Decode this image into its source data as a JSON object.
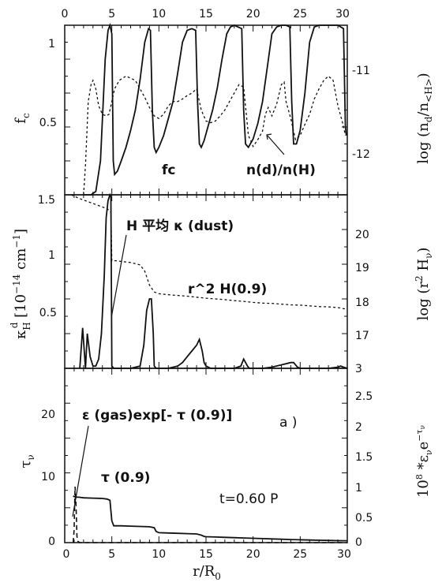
{
  "chart_data": [
    {
      "panel": "top",
      "type": "line",
      "xlim": [
        0,
        30
      ],
      "top_xticks": [
        "0",
        "5",
        "10",
        "15",
        "20",
        "25",
        "30"
      ],
      "ylim": [
        0,
        1.0
      ],
      "yticks": [
        "1",
        "0.5"
      ],
      "ylabel": "f_c",
      "right_ylabel": "log (n_d/n_<H>)",
      "right_yticks": [
        "-11",
        "-12"
      ],
      "right_ylim": [
        -12.55,
        -10.55
      ],
      "annotations": {
        "fc": "fc",
        "ndnh": "n(d)/n(H)"
      },
      "series": [
        {
          "name": "fc",
          "style": "solid",
          "x": [
            2.0,
            2.3,
            2.8,
            3.3,
            3.8,
            4.3,
            4.6,
            4.8,
            5.0,
            5.15,
            5.3,
            5.6,
            6.0,
            6.5,
            7.0,
            7.5,
            8.0,
            8.5,
            8.9,
            9.1,
            9.3,
            9.5,
            9.7,
            10.0,
            10.5,
            11.0,
            11.5,
            12.0,
            12.5,
            13.0,
            13.5,
            13.9,
            14.1,
            14.3,
            14.5,
            14.8,
            15.2,
            15.7,
            16.2,
            16.7,
            17.2,
            17.6,
            18.0,
            18.4,
            18.8,
            19.0,
            19.2,
            19.5,
            20.0,
            20.5,
            21.0,
            21.5,
            22.0,
            22.5,
            23.0,
            23.5,
            23.9,
            24.1,
            24.3,
            24.6,
            25.0,
            25.5,
            26.0,
            26.5,
            27.0,
            28.0,
            29.0,
            29.6,
            29.8,
            29.9
          ],
          "y": [
            0.0,
            0.0,
            0.0,
            0.02,
            0.2,
            0.8,
            0.97,
            1.0,
            0.95,
            0.2,
            0.12,
            0.14,
            0.2,
            0.28,
            0.38,
            0.5,
            0.68,
            0.9,
            0.98,
            0.97,
            0.5,
            0.28,
            0.25,
            0.28,
            0.35,
            0.45,
            0.55,
            0.72,
            0.9,
            0.97,
            0.98,
            0.97,
            0.55,
            0.3,
            0.28,
            0.32,
            0.4,
            0.5,
            0.63,
            0.8,
            0.95,
            0.99,
            1.0,
            0.99,
            0.98,
            0.5,
            0.3,
            0.28,
            0.33,
            0.42,
            0.55,
            0.75,
            0.95,
            0.99,
            1.0,
            1.0,
            0.99,
            0.55,
            0.3,
            0.3,
            0.38,
            0.6,
            0.9,
            0.99,
            1.0,
            1.0,
            1.0,
            0.98,
            0.4,
            0.35
          ]
        },
        {
          "name": "n(d)/n(H)",
          "style": "dashed",
          "x": [
            2.0,
            2.2,
            2.5,
            2.8,
            3.0,
            3.3,
            3.6,
            4.0,
            4.4,
            4.7,
            5.0,
            5.3,
            5.8,
            6.5,
            7.5,
            8.5,
            9.0,
            9.5,
            10.0,
            10.5,
            11.0,
            11.5,
            12.0,
            12.5,
            13.0,
            13.5,
            14.0,
            14.5,
            15.0,
            15.5,
            16.0,
            16.5,
            17.0,
            17.5,
            18.0,
            18.5,
            19.0,
            19.5,
            20.0,
            20.5,
            21.0,
            21.3,
            21.6,
            22.0,
            22.5,
            23.0,
            23.3,
            23.5,
            24.0,
            24.5,
            25.0,
            25.5,
            26.0,
            26.5,
            27.0,
            27.5,
            28.0,
            28.5,
            29.0,
            29.5,
            29.8
          ],
          "y": [
            -12.55,
            -12.2,
            -11.45,
            -11.25,
            -11.2,
            -11.3,
            -11.5,
            -11.6,
            -11.62,
            -11.6,
            -11.45,
            -11.3,
            -11.2,
            -11.15,
            -11.2,
            -11.4,
            -11.52,
            -11.62,
            -11.65,
            -11.6,
            -11.5,
            -11.45,
            -11.45,
            -11.42,
            -11.38,
            -11.35,
            -11.3,
            -11.55,
            -11.68,
            -11.7,
            -11.68,
            -11.62,
            -11.55,
            -11.45,
            -11.35,
            -11.25,
            -11.28,
            -11.85,
            -11.98,
            -11.9,
            -11.8,
            -11.6,
            -11.52,
            -11.62,
            -11.48,
            -11.25,
            -11.22,
            -11.45,
            -11.65,
            -11.9,
            -11.85,
            -11.72,
            -11.6,
            -11.42,
            -11.3,
            -11.2,
            -11.15,
            -11.2,
            -11.5,
            -11.7,
            -11.85
          ]
        }
      ]
    },
    {
      "panel": "middle",
      "type": "line",
      "xlim": [
        0,
        30
      ],
      "ylim": [
        0,
        1.5
      ],
      "yticks": [
        "1.5",
        "1",
        "0.5"
      ],
      "ylabel": "κ_H^d [10^-14 cm^-1]",
      "right_ylabel": "log (r^2 H_ν)",
      "right_yticks": [
        "20",
        "19",
        "18",
        "17"
      ],
      "right_ylim": [
        15.8,
        20.8
      ],
      "annotations": {
        "kappa": "H 平均 κ (dust)",
        "r2h": "r^2 H(0.9)"
      },
      "series": [
        {
          "name": "κ (dust)",
          "style": "solid",
          "x": [
            1.6,
            1.9,
            2.2,
            2.4,
            2.7,
            3.0,
            3.3,
            3.6,
            3.9,
            4.2,
            4.4,
            4.6,
            4.8,
            4.9,
            5.0,
            5.2,
            5.5,
            6.0,
            7.0,
            8.0,
            8.4,
            8.7,
            9.0,
            9.2,
            9.4,
            9.5,
            9.7,
            10.0,
            11.0,
            12.0,
            12.5,
            13.0,
            13.5,
            14.0,
            14.3,
            14.6,
            14.8,
            15.0,
            15.5,
            16.0,
            17.0,
            18.0,
            18.7,
            19.0,
            19.2,
            19.4,
            19.6,
            20.0,
            21.0,
            22.0,
            23.0,
            24.0,
            24.3,
            24.5,
            24.7,
            25.0,
            26.0,
            27.0,
            28.0,
            29.0,
            29.3,
            29.6,
            30.0
          ],
          "y": [
            0.0,
            0.35,
            0.0,
            0.3,
            0.1,
            0.02,
            0.02,
            0.08,
            0.3,
            0.8,
            1.3,
            1.45,
            1.5,
            1.48,
            0.02,
            0.0,
            0.0,
            0.0,
            0.0,
            0.02,
            0.2,
            0.5,
            0.6,
            0.6,
            0.3,
            0.02,
            0.0,
            0.0,
            0.0,
            0.02,
            0.05,
            0.1,
            0.15,
            0.2,
            0.25,
            0.15,
            0.05,
            0.02,
            0.0,
            0.0,
            0.0,
            0.0,
            0.02,
            0.08,
            0.05,
            0.02,
            0.0,
            0.0,
            0.0,
            0.01,
            0.03,
            0.05,
            0.05,
            0.03,
            0.01,
            0.0,
            0.0,
            0.0,
            0.0,
            0.01,
            0.02,
            0.01,
            0.0
          ]
        },
        {
          "name": "r^2 H(0.9)",
          "style": "dashed",
          "x": [
            0.7,
            1.5,
            2.5,
            3.5,
            4.5,
            4.9,
            5.0,
            5.5,
            6.0,
            7.0,
            8.0,
            8.5,
            9.0,
            9.5,
            10.0,
            11.0,
            12.0,
            13.0,
            14.0,
            15.0,
            16.0,
            17.0,
            18.0,
            19.0,
            20.0,
            21.0,
            22.0,
            23.0,
            24.0,
            25.0,
            26.0,
            27.0,
            28.0,
            29.0,
            30.0
          ],
          "y": [
            20.8,
            20.7,
            20.6,
            20.5,
            20.4,
            20.3,
            18.9,
            18.9,
            18.88,
            18.85,
            18.78,
            18.6,
            18.2,
            18.0,
            17.95,
            17.92,
            17.9,
            17.88,
            17.85,
            17.82,
            17.8,
            17.78,
            17.75,
            17.73,
            17.7,
            17.68,
            17.67,
            17.65,
            17.63,
            17.62,
            17.6,
            17.58,
            17.57,
            17.55,
            17.5
          ]
        }
      ]
    },
    {
      "panel": "bottom",
      "type": "line",
      "xlim": [
        0,
        30
      ],
      "xticks": [
        "0",
        "5",
        "10",
        "15",
        "20",
        "25",
        "30"
      ],
      "xlabel": "r/R_0",
      "ylim": [
        0,
        28
      ],
      "yticks": [
        "20",
        "10",
        "0"
      ],
      "ylabel": "τ_ν",
      "right_ylabel": "10^8 * ε_ν e^-τ_ν",
      "right_yticks": [
        "2.5",
        "2",
        "1.5",
        "1",
        "0.5",
        "0"
      ],
      "right_ylim": [
        0,
        2.8
      ],
      "annotations": {
        "epsilon": "ε (gas)exp[- τ (0.9)]",
        "tau": "τ (0.9)",
        "panel_tag": "a )",
        "time": "t=0.60 P"
      },
      "series": [
        {
          "name": "τ (0.9)",
          "style": "solid",
          "x": [
            0.9,
            1.0,
            1.2,
            1.5,
            2.0,
            3.0,
            4.0,
            4.5,
            4.8,
            5.0,
            5.2,
            6.0,
            7.0,
            8.0,
            9.0,
            9.5,
            9.7,
            10.0,
            11.0,
            12.0,
            13.0,
            14.0,
            14.5,
            14.8,
            15.0,
            16.0,
            17.0,
            18.0,
            19.0,
            20.0,
            21.0,
            22.0,
            23.0,
            24.0,
            25.0,
            26.0,
            27.0,
            28.0,
            29.0,
            30.0
          ],
          "y": [
            7.5,
            7.4,
            7.3,
            7.3,
            7.2,
            7.15,
            7.1,
            7.0,
            6.8,
            3.5,
            2.7,
            2.7,
            2.65,
            2.6,
            2.55,
            2.4,
            1.8,
            1.6,
            1.55,
            1.5,
            1.45,
            1.4,
            1.2,
            1.0,
            0.95,
            0.9,
            0.85,
            0.8,
            0.75,
            0.7,
            0.65,
            0.6,
            0.55,
            0.5,
            0.45,
            0.42,
            0.38,
            0.35,
            0.32,
            0.3
          ]
        },
        {
          "name": "ε (gas)exp[- τ (0.9)]",
          "style": "dashed",
          "x": [
            0.9,
            1.0,
            1.1,
            1.2,
            1.3,
            1.4,
            1.6,
            2.0,
            3.0,
            30.0
          ],
          "y": [
            0.0,
            0.2,
            0.9,
            0.6,
            0.1,
            0.02,
            0.0,
            0.0,
            0.0,
            0.0
          ]
        }
      ]
    }
  ]
}
